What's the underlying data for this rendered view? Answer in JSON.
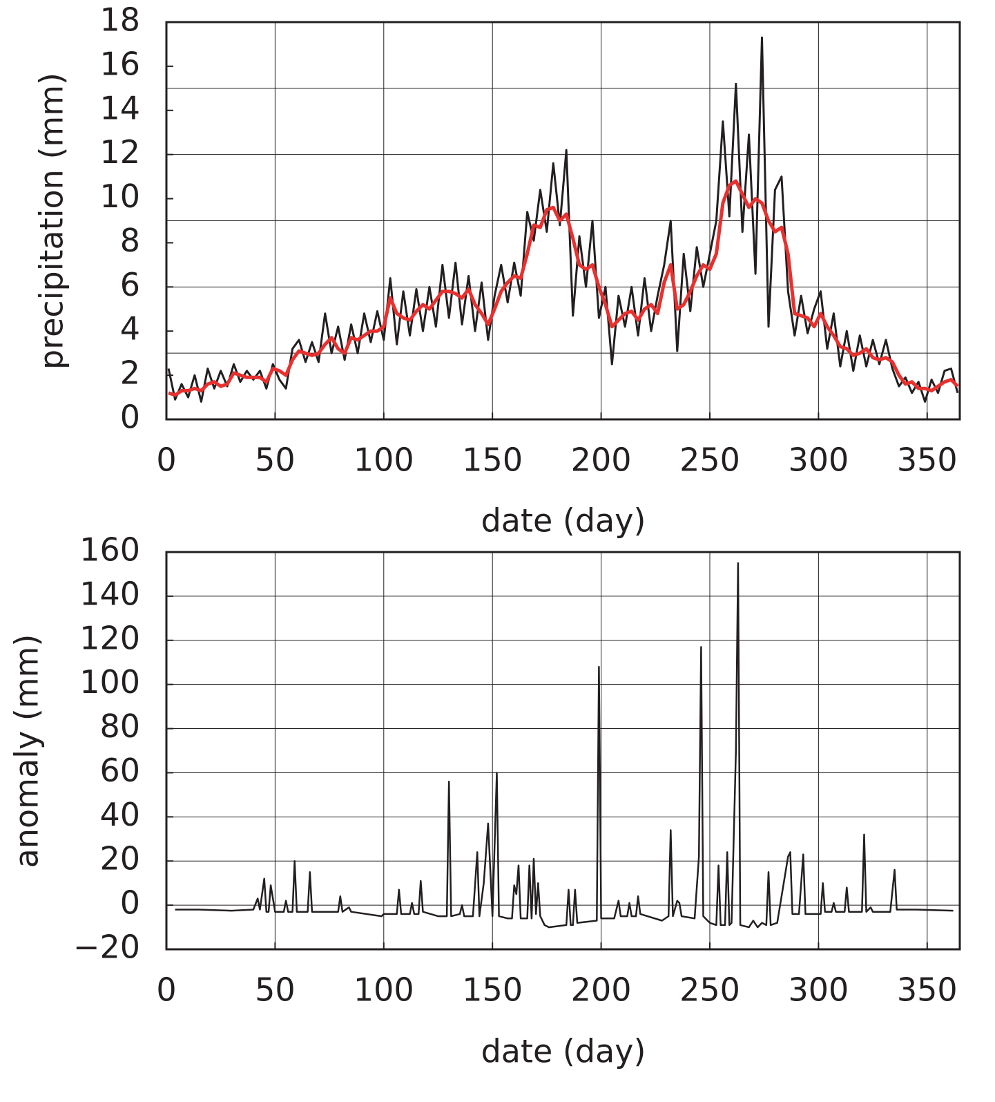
{
  "chart_data": [
    {
      "type": "line",
      "xlabel": "date (day)",
      "ylabel": "precipitation (mm)",
      "xlim": [
        0,
        365
      ],
      "xticks": [
        0,
        50,
        100,
        150,
        200,
        250,
        300,
        350
      ],
      "ylim": [
        0,
        18
      ],
      "yticks": [
        0,
        2,
        4,
        6,
        8,
        10,
        12,
        14,
        16,
        18
      ],
      "grid": true,
      "ygrid": [
        3,
        6,
        9,
        12,
        15
      ],
      "x": [
        1,
        4,
        7,
        10,
        13,
        16,
        19,
        22,
        25,
        28,
        31,
        34,
        37,
        40,
        43,
        46,
        49,
        52,
        55,
        58,
        61,
        64,
        67,
        70,
        73,
        76,
        79,
        82,
        85,
        88,
        91,
        94,
        97,
        100,
        103,
        106,
        109,
        112,
        115,
        118,
        121,
        124,
        127,
        130,
        133,
        136,
        139,
        142,
        145,
        148,
        151,
        154,
        157,
        160,
        163,
        166,
        169,
        172,
        175,
        178,
        181,
        184,
        187,
        190,
        193,
        196,
        199,
        202,
        205,
        208,
        211,
        214,
        217,
        220,
        223,
        226,
        229,
        232,
        235,
        238,
        241,
        244,
        247,
        250,
        253,
        256,
        259,
        262,
        265,
        268,
        271,
        274,
        277,
        280,
        283,
        286,
        289,
        292,
        295,
        298,
        301,
        304,
        307,
        310,
        313,
        316,
        319,
        322,
        325,
        328,
        331,
        334,
        337,
        340,
        343,
        346,
        349,
        352,
        355,
        358,
        361,
        364
      ],
      "series": [
        {
          "color": "#231f20",
          "values": [
            2.3,
            0.9,
            1.6,
            1.0,
            2.0,
            0.8,
            2.3,
            1.4,
            2.2,
            1.5,
            2.5,
            1.7,
            2.2,
            1.8,
            2.2,
            1.4,
            2.5,
            1.8,
            1.4,
            3.2,
            3.6,
            2.6,
            3.5,
            2.6,
            4.8,
            3.0,
            4.2,
            2.7,
            4.3,
            3.0,
            4.8,
            3.5,
            4.9,
            3.6,
            6.4,
            3.4,
            5.8,
            3.8,
            5.9,
            4.0,
            6.0,
            4.2,
            7.0,
            4.6,
            7.1,
            4.3,
            6.5,
            4.0,
            6.2,
            3.6,
            5.6,
            7.0,
            5.3,
            7.1,
            5.6,
            9.4,
            8.1,
            10.4,
            8.5,
            11.6,
            8.8,
            12.2,
            4.7,
            8.3,
            6.0,
            9.0,
            4.6,
            6.0,
            2.5,
            5.6,
            4.2,
            6.0,
            3.8,
            6.4,
            4.0,
            5.6,
            7.0,
            9.0,
            3.1,
            7.5,
            4.9,
            7.8,
            6.0,
            7.5,
            9.0,
            13.5,
            9.2,
            15.2,
            8.5,
            12.9,
            6.6,
            17.3,
            4.2,
            10.4,
            11.0,
            5.8,
            3.8,
            5.6,
            3.9,
            5.0,
            5.8,
            3.2,
            4.8,
            2.4,
            4.0,
            2.2,
            3.8,
            2.4,
            3.6,
            2.5,
            3.6,
            2.3,
            1.5,
            1.9,
            1.2,
            1.7,
            0.8,
            1.8,
            1.2,
            2.2,
            2.3,
            1.2
          ]
        },
        {
          "color": "#e8312f",
          "values": [
            1.2,
            1.1,
            1.3,
            1.3,
            1.4,
            1.3,
            1.6,
            1.7,
            1.5,
            1.6,
            2.1,
            2.0,
            1.9,
            1.9,
            1.9,
            1.7,
            2.3,
            2.2,
            2.0,
            2.7,
            3.1,
            3.0,
            2.9,
            3.0,
            3.4,
            3.7,
            3.2,
            3.0,
            3.7,
            3.6,
            3.8,
            4.0,
            4.0,
            4.2,
            5.5,
            4.8,
            4.6,
            4.5,
            4.9,
            5.2,
            5.0,
            5.4,
            5.8,
            5.8,
            5.7,
            5.5,
            5.9,
            5.2,
            4.8,
            4.3,
            5.0,
            5.8,
            6.2,
            6.5,
            6.4,
            7.5,
            8.8,
            8.7,
            9.5,
            9.6,
            9.0,
            9.3,
            8.2,
            7.0,
            6.8,
            7.0,
            6.0,
            5.2,
            4.2,
            4.5,
            4.8,
            4.9,
            4.5,
            5.0,
            5.2,
            4.8,
            6.2,
            7.0,
            5.0,
            5.2,
            5.8,
            6.5,
            7.0,
            6.8,
            7.5,
            9.8,
            10.6,
            10.8,
            10.2,
            9.6,
            10.0,
            9.8,
            9.0,
            8.5,
            8.7,
            7.5,
            4.8,
            4.7,
            4.6,
            4.2,
            4.8,
            4.2,
            3.8,
            3.3,
            3.2,
            2.9,
            3.0,
            3.2,
            2.8,
            2.7,
            2.8,
            2.6,
            2.0,
            1.6,
            1.7,
            1.4,
            1.4,
            1.3,
            1.5,
            1.7,
            1.8,
            1.5
          ]
        }
      ]
    },
    {
      "type": "line",
      "xlabel": "date (day)",
      "ylabel": "anomaly (mm)",
      "xlim": [
        0,
        365
      ],
      "xticks": [
        0,
        50,
        100,
        150,
        200,
        250,
        300,
        350
      ],
      "ylim": [
        -20,
        160
      ],
      "yticks": [
        {
          "value": -20,
          "label": "−20"
        },
        0,
        20,
        40,
        60,
        80,
        100,
        120,
        140,
        160
      ],
      "grid": true,
      "x": [
        4,
        15,
        30,
        40,
        42,
        43,
        45,
        46,
        47,
        48,
        50,
        54,
        55,
        56,
        58,
        59,
        60,
        65,
        66,
        67,
        70,
        79,
        80,
        81,
        84,
        85,
        99,
        100,
        106,
        107,
        108,
        112,
        113,
        114,
        116,
        117,
        118,
        125,
        129,
        130,
        131,
        135,
        136,
        137,
        141,
        143,
        144,
        146,
        148,
        150,
        152,
        153,
        157,
        159,
        160,
        161,
        162,
        163,
        166,
        167,
        168,
        169,
        170,
        171,
        172,
        174,
        176,
        184,
        185,
        186,
        187,
        188,
        189,
        198,
        199,
        200,
        206,
        208,
        209,
        212,
        213,
        214,
        216,
        217,
        218,
        228,
        231,
        232,
        233,
        235,
        236,
        237,
        243,
        245,
        246,
        247,
        250,
        253,
        254,
        255,
        257,
        258,
        259,
        260,
        262,
        263,
        264,
        268,
        270,
        272,
        274,
        276,
        277,
        278,
        281,
        286,
        287,
        288,
        291,
        293,
        294,
        301,
        302,
        303,
        306,
        307,
        308,
        312,
        313,
        314,
        320,
        321,
        322,
        324,
        325,
        333,
        335,
        336,
        345,
        362
      ],
      "series": [
        {
          "color": "#231f20",
          "values": [
            -2,
            -2,
            -2.5,
            -2,
            3,
            -2,
            12,
            -3,
            -3,
            9,
            -3,
            -3,
            2,
            -3,
            -3,
            20,
            -3,
            -3,
            15,
            -3,
            -3,
            -3,
            4,
            -3,
            -1,
            -3,
            -5,
            -4,
            -4,
            7,
            -4,
            -4,
            1,
            -4,
            -4,
            11,
            -3,
            -5,
            -5,
            56,
            -5,
            -4,
            0,
            -5,
            -5,
            24,
            -5,
            10,
            37,
            -5,
            60,
            -5,
            -6,
            -6,
            9,
            5,
            18,
            -6,
            -6,
            18,
            -6,
            21,
            -4,
            10,
            -5,
            -9,
            -10,
            -9,
            7,
            -9,
            -9,
            7,
            -8,
            -7,
            108,
            -6,
            -6,
            2,
            -5,
            -5,
            1,
            -5,
            -5,
            4,
            -4,
            -7,
            -5,
            34,
            -5,
            2,
            1,
            -5,
            -6,
            22,
            117,
            -5,
            -8,
            -9,
            18,
            -9,
            -9,
            24,
            -9,
            -8,
            70,
            155,
            -9,
            -10,
            -7,
            -10,
            -8,
            -9,
            15,
            -9,
            -8,
            22,
            24,
            -4,
            -4,
            23,
            -4,
            -4,
            10,
            -3,
            -3,
            1,
            -3,
            -3,
            8,
            -3,
            -3,
            32,
            -3,
            -1,
            -3,
            -3,
            16,
            -2,
            -2,
            -2.5
          ]
        }
      ]
    }
  ]
}
